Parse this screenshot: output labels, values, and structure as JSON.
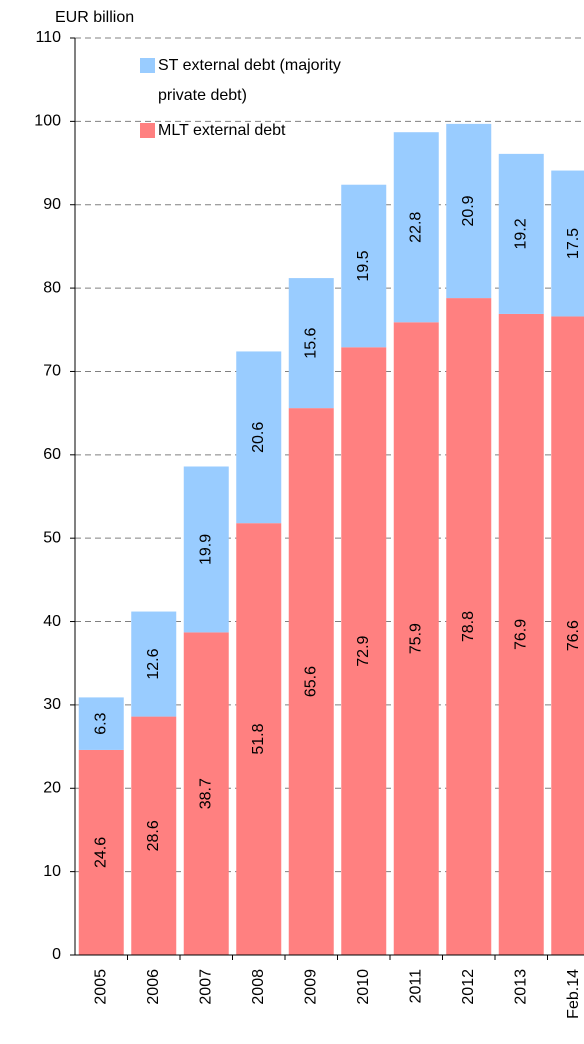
{
  "chart_data": {
    "type": "stacked-bar",
    "y_label": "EUR billion",
    "categories": [
      "2005",
      "2006",
      "2007",
      "2008",
      "2009",
      "2010",
      "2011",
      "2012",
      "2013",
      "Feb.14"
    ],
    "series": [
      {
        "name": "MLT external debt",
        "color": "#ff8080",
        "values": [
          24.6,
          28.6,
          38.7,
          51.8,
          65.6,
          72.9,
          75.9,
          78.8,
          76.9,
          76.6
        ]
      },
      {
        "name": "ST external debt (majority private debt)",
        "color": "#99ccff",
        "values": [
          6.3,
          12.6,
          19.9,
          20.6,
          15.6,
          19.5,
          22.8,
          20.9,
          19.2,
          17.5
        ]
      }
    ],
    "ylim": [
      0,
      110
    ],
    "yticks": [
      0,
      10,
      20,
      30,
      40,
      50,
      60,
      70,
      80,
      90,
      100,
      110
    ],
    "grid": true
  }
}
